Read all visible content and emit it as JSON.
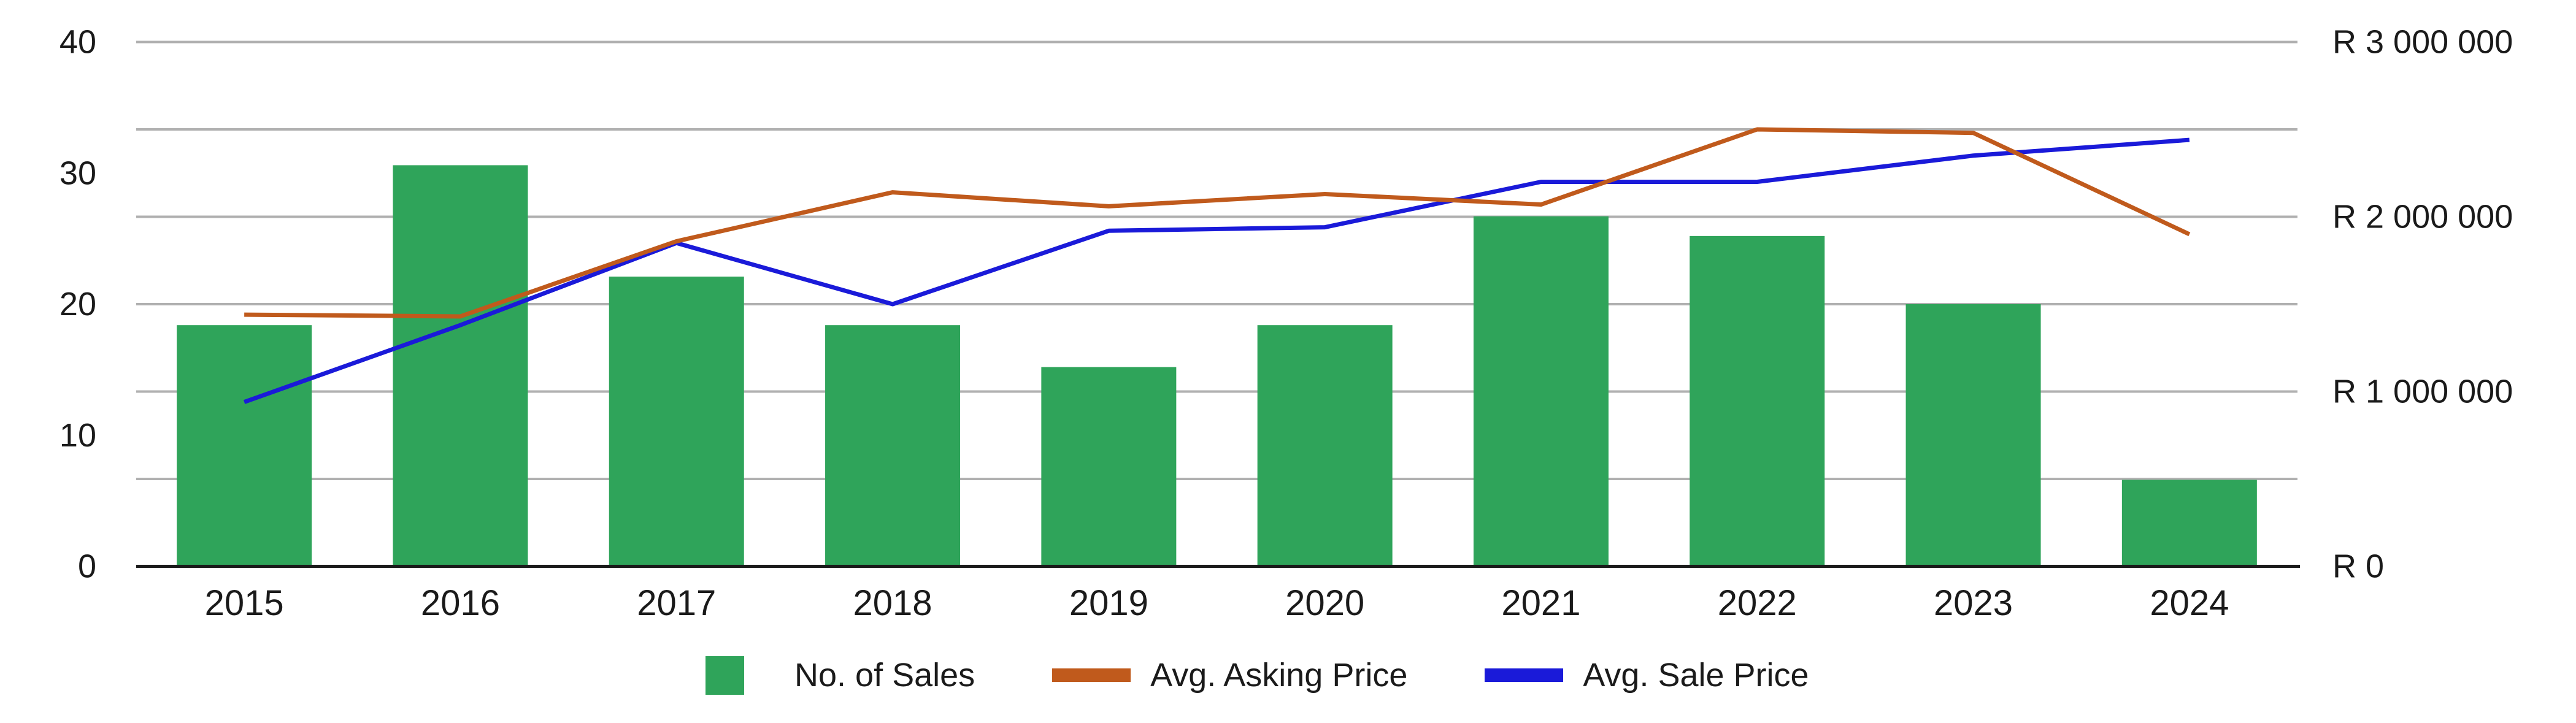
{
  "colors": {
    "background": "#ffffff",
    "bar_green": "#2FA45A",
    "asking_orange": "#C05A1C",
    "sale_blue": "#1A1AD9",
    "gridline_gray": "#B0B0B0",
    "axis_black": "#1a1a1a",
    "text": "#1a1a1a"
  },
  "legend": {
    "items": [
      {
        "label": "No. of Sales",
        "swatch": "square"
      },
      {
        "label": "Avg. Asking Price",
        "swatch": "line"
      },
      {
        "label": "Avg. Sale Price",
        "swatch": "line"
      }
    ]
  },
  "chart_data": {
    "type": "bar",
    "subtype": "combo-bar-line-dual-axis",
    "title": "",
    "categories": [
      "2015",
      "2016",
      "2017",
      "2018",
      "2019",
      "2020",
      "2021",
      "2022",
      "2023",
      "2024"
    ],
    "series": [
      {
        "name": "No. of Sales",
        "type": "bar",
        "axis": "left",
        "color": "#2FA45A",
        "values": [
          18.4,
          30.6,
          22.1,
          18.4,
          15.2,
          18.4,
          26.7,
          25.2,
          20,
          6.6
        ]
      },
      {
        "name": "Avg. Asking Price",
        "type": "line",
        "axis": "right",
        "color": "#C05A1C",
        "values": [
          1440000,
          1430000,
          1860000,
          2140000,
          2060000,
          2130000,
          2070000,
          2500000,
          2480000,
          1900000
        ]
      },
      {
        "name": "Avg. Sale Price",
        "type": "line",
        "axis": "right",
        "color": "#1A1AD9",
        "values": [
          940000,
          1380000,
          1850000,
          1500000,
          1920000,
          1940000,
          2200000,
          2200000,
          2350000,
          2440000
        ]
      }
    ],
    "left_axis": {
      "min": 0,
      "max": 40,
      "ticks": [
        0,
        10,
        20,
        30,
        40
      ],
      "tick_labels": [
        "0",
        "10",
        "20",
        "30",
        "40"
      ]
    },
    "right_axis": {
      "min": 0,
      "max": 3000000,
      "tick_values": [
        0,
        1000000,
        2000000,
        3000000
      ],
      "tick_labels": [
        "R 0",
        "R 1 000 000",
        "R 2 000 000",
        "R 3 000 000"
      ]
    },
    "gridlines": {
      "count": 7,
      "orientation": "horizontal",
      "step_right_axis": 500000,
      "color": "#B0B0B0"
    },
    "legend_position": "bottom",
    "xlabel": "",
    "ylabel_left": "",
    "ylabel_right": ""
  }
}
